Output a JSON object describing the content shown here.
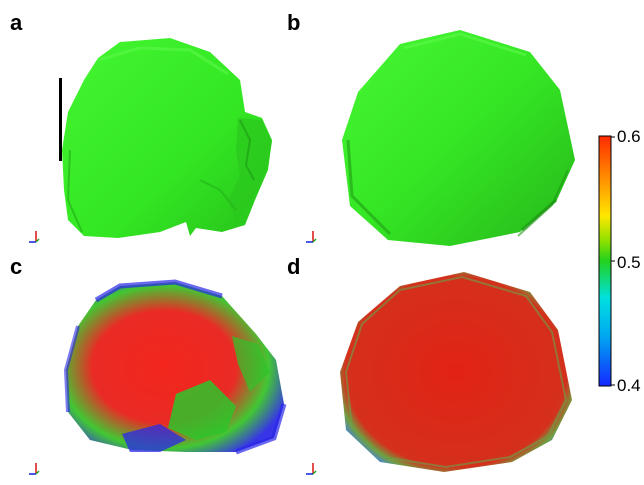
{
  "panels": [
    {
      "letter": "a",
      "mode": "surface"
    },
    {
      "letter": "b",
      "mode": "surface"
    },
    {
      "letter": "c",
      "mode": "concentration"
    },
    {
      "letter": "d",
      "mode": "concentration"
    }
  ],
  "colorbar": {
    "ticks": [
      "0.6",
      "0.5",
      "0.4"
    ],
    "range": [
      0.4,
      0.6
    ],
    "colors": [
      "#ff2a00",
      "#ffa000",
      "#ffe800",
      "#8ee000",
      "#22d21e",
      "#00e0e0",
      "#00a8f0",
      "#1428ff"
    ]
  },
  "colors": {
    "surface": "#33ee22",
    "surface_dark": "#22a818",
    "high": "#f01a10",
    "mid": "#2ec42a",
    "low": "#2a28e8"
  },
  "scale_bar_present": true,
  "axes_icon_name": "axes-triad-icon"
}
